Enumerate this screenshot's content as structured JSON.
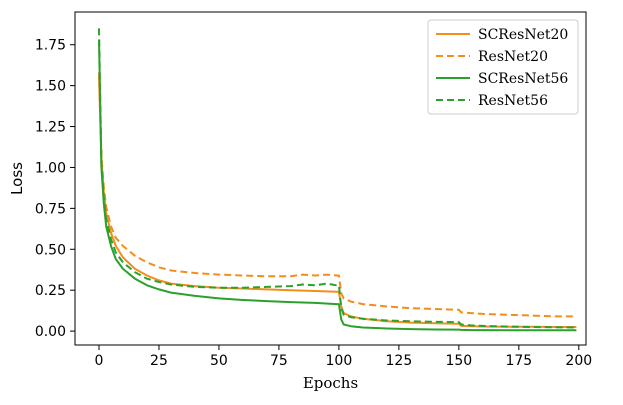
{
  "chart_data": {
    "type": "line",
    "xlabel": "Epochs",
    "ylabel": "Loss",
    "xlim": [
      -10,
      203
    ],
    "ylim": [
      -0.085,
      1.95
    ],
    "xticks": [
      0,
      25,
      50,
      75,
      100,
      125,
      150,
      175,
      200
    ],
    "yticks": [
      0.0,
      0.25,
      0.5,
      0.75,
      1.0,
      1.25,
      1.5,
      1.75
    ],
    "xtick_labels": [
      "0",
      "25",
      "50",
      "75",
      "100",
      "125",
      "150",
      "175",
      "200"
    ],
    "ytick_labels": [
      "0.00",
      "0.25",
      "0.50",
      "0.75",
      "1.00",
      "1.25",
      "1.50",
      "1.75"
    ],
    "grid": false,
    "legend_position": "top-right",
    "series": [
      {
        "name": "SCResNet20",
        "color": "#f28e1b",
        "style": "solid",
        "x": [
          0,
          1,
          2,
          3,
          5,
          7,
          10,
          15,
          20,
          25,
          30,
          40,
          50,
          60,
          70,
          80,
          90,
          99,
          100,
          101,
          102,
          105,
          110,
          120,
          130,
          140,
          149,
          150,
          151,
          155,
          160,
          170,
          180,
          190,
          199
        ],
        "y": [
          1.56,
          1.05,
          0.85,
          0.72,
          0.6,
          0.52,
          0.45,
          0.38,
          0.34,
          0.31,
          0.29,
          0.275,
          0.265,
          0.26,
          0.255,
          0.25,
          0.245,
          0.24,
          0.24,
          0.15,
          0.11,
          0.09,
          0.075,
          0.06,
          0.052,
          0.048,
          0.045,
          0.045,
          0.032,
          0.03,
          0.028,
          0.027,
          0.026,
          0.025,
          0.025
        ]
      },
      {
        "name": "ResNet20",
        "color": "#f28e1b",
        "style": "dashed",
        "x": [
          0,
          1,
          2,
          3,
          5,
          7,
          10,
          15,
          20,
          25,
          30,
          40,
          50,
          60,
          70,
          80,
          85,
          90,
          95,
          99,
          100,
          101,
          102,
          105,
          110,
          120,
          130,
          140,
          149,
          150,
          151,
          155,
          160,
          170,
          180,
          190,
          199
        ],
        "y": [
          1.58,
          1.08,
          0.88,
          0.76,
          0.64,
          0.57,
          0.52,
          0.46,
          0.42,
          0.39,
          0.37,
          0.355,
          0.345,
          0.34,
          0.335,
          0.335,
          0.345,
          0.34,
          0.345,
          0.34,
          0.34,
          0.23,
          0.2,
          0.18,
          0.165,
          0.15,
          0.14,
          0.135,
          0.13,
          0.13,
          0.115,
          0.11,
          0.105,
          0.1,
          0.095,
          0.09,
          0.09
        ]
      },
      {
        "name": "SCResNet56",
        "color": "#2ca02c",
        "style": "solid",
        "x": [
          0,
          1,
          2,
          3,
          5,
          7,
          10,
          15,
          20,
          25,
          30,
          40,
          50,
          60,
          70,
          80,
          90,
          99,
          100,
          101,
          102,
          105,
          110,
          120,
          130,
          140,
          149,
          150,
          151,
          155,
          160,
          170,
          180,
          190,
          199
        ],
        "y": [
          1.78,
          1.0,
          0.78,
          0.64,
          0.52,
          0.44,
          0.38,
          0.32,
          0.28,
          0.255,
          0.235,
          0.215,
          0.2,
          0.19,
          0.183,
          0.177,
          0.172,
          0.165,
          0.165,
          0.07,
          0.04,
          0.03,
          0.022,
          0.016,
          0.012,
          0.01,
          0.009,
          0.009,
          0.007,
          0.006,
          0.006,
          0.005,
          0.005,
          0.005,
          0.005
        ]
      },
      {
        "name": "ResNet56",
        "color": "#2ca02c",
        "style": "dashed",
        "x": [
          0,
          1,
          2,
          3,
          5,
          7,
          10,
          15,
          20,
          25,
          30,
          40,
          50,
          60,
          70,
          80,
          85,
          90,
          95,
          99,
          100,
          101,
          102,
          105,
          110,
          120,
          130,
          140,
          149,
          150,
          151,
          155,
          160,
          170,
          180,
          190,
          199
        ],
        "y": [
          1.85,
          1.02,
          0.82,
          0.68,
          0.56,
          0.48,
          0.42,
          0.36,
          0.32,
          0.3,
          0.285,
          0.27,
          0.265,
          0.265,
          0.27,
          0.275,
          0.285,
          0.28,
          0.29,
          0.28,
          0.28,
          0.14,
          0.1,
          0.085,
          0.075,
          0.065,
          0.06,
          0.057,
          0.055,
          0.055,
          0.04,
          0.035,
          0.032,
          0.028,
          0.025,
          0.023,
          0.022
        ]
      }
    ]
  }
}
